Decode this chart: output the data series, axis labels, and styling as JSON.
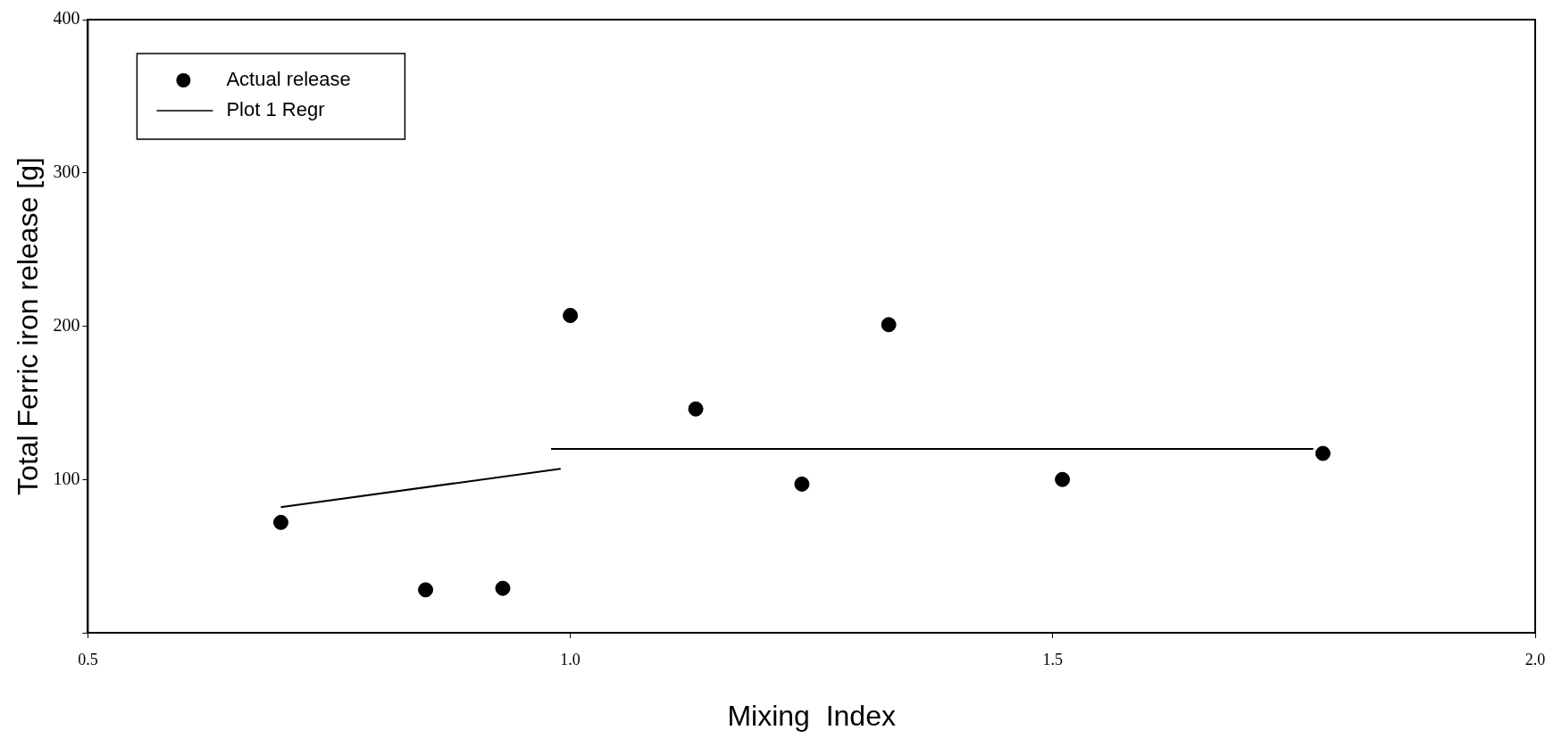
{
  "chart_data": {
    "type": "scatter",
    "xlabel": "Mixing  Index",
    "ylabel": "Total Ferric iron release [g]",
    "series": [
      {
        "name": "Actual release",
        "marker": "circle",
        "color": "#000000",
        "x": [
          0.7,
          0.85,
          0.93,
          1.0,
          1.13,
          1.24,
          1.33,
          1.51,
          1.78
        ],
        "values": [
          72,
          28,
          29,
          207,
          146,
          97,
          201,
          100,
          117
        ]
      },
      {
        "name": "Plot 1 Regr",
        "type": "line",
        "marker": "none",
        "color": "#000000",
        "x": [
          0.7,
          0.99,
          0.985,
          0.98,
          1.77
        ],
        "values": [
          82,
          107,
          null,
          120,
          120
        ]
      }
    ],
    "xlim": [
      0.5,
      2.0
    ],
    "xticks": [
      0.5,
      {
        "value": 1.0,
        "label": "1.0"
      },
      1.5,
      {
        "value": 2.0,
        "label": "2.0"
      }
    ],
    "ylim": [
      0,
      400
    ],
    "yticks": [
      {
        "value": 0,
        "label": null
      },
      100,
      200,
      300,
      400
    ],
    "grid": false,
    "legend": "top left",
    "line_style": "solid"
  }
}
